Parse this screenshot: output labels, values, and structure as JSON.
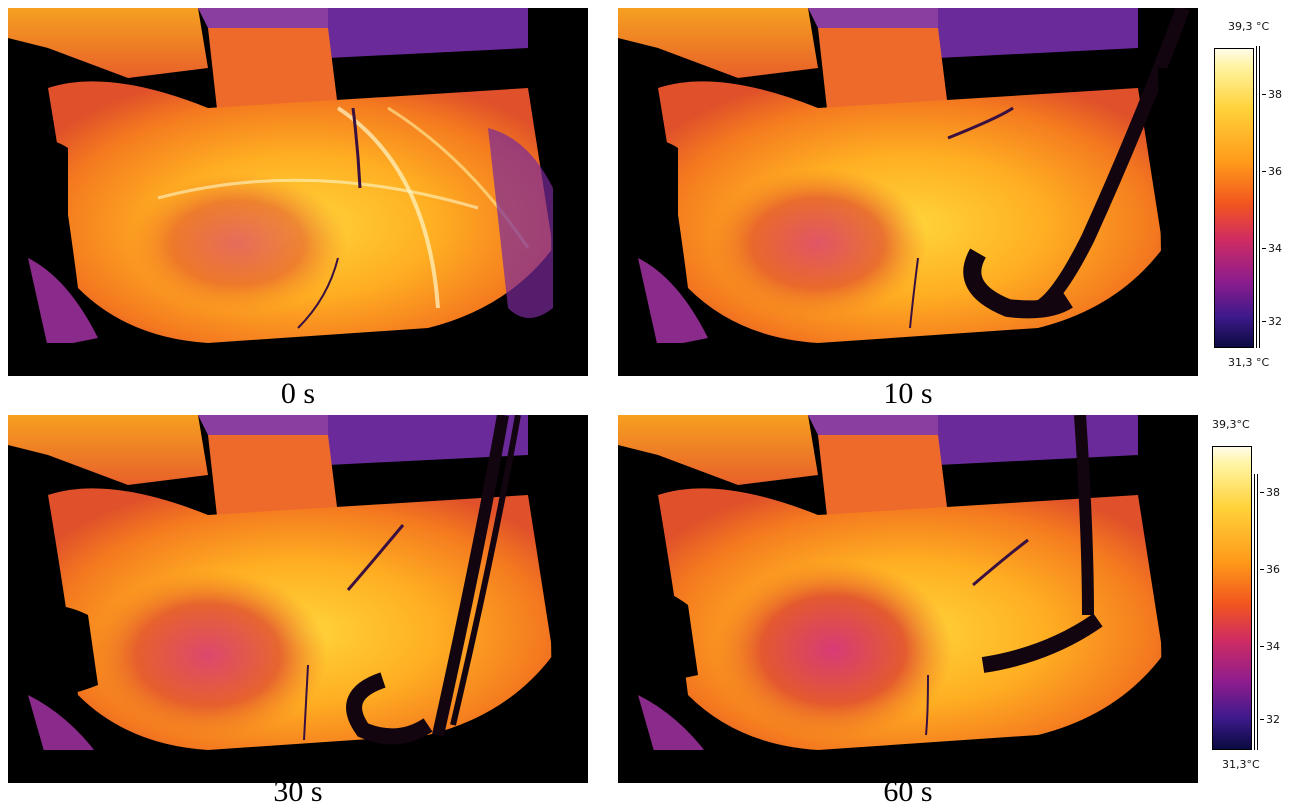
{
  "panels": [
    {
      "caption": "0 s"
    },
    {
      "caption": "10 s"
    },
    {
      "caption": "30 s"
    },
    {
      "caption": "60 s"
    }
  ],
  "scale_top": {
    "max_label": "39,3 °C",
    "min_label": "31,3 °C",
    "ticks": [
      "38",
      "36",
      "34",
      "32"
    ]
  },
  "scale_bottom": {
    "max_label": "39,3°C",
    "min_label": "31,3°C",
    "ticks": [
      "38",
      "36",
      "34",
      "32"
    ]
  },
  "colors": {
    "hot": "#fff7b0",
    "warm": "#ffb020",
    "mid": "#f26a1f",
    "cool": "#9a1f8a",
    "cold": "#1a1060",
    "background": "#000000"
  }
}
